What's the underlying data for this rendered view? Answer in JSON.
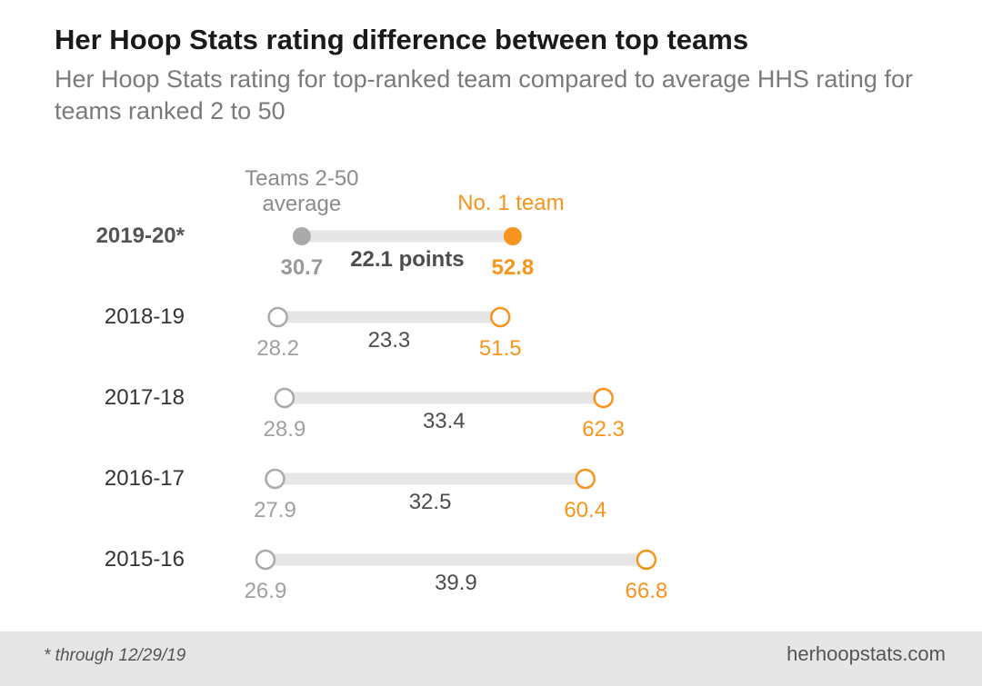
{
  "header": {
    "title": "Her Hoop Stats rating difference between top teams",
    "subtitle": "Her Hoop Stats rating for top-ranked team compared to average HHS rating for teams ranked 2 to 50"
  },
  "chart_data": {
    "type": "dumbbell",
    "title": "Her Hoop Stats rating difference between top teams",
    "subtitle": "Her Hoop Stats rating for top-ranked team compared to average HHS rating for teams ranked 2 to 50",
    "legend": {
      "left_label_line1": "Teams 2-50",
      "left_label_line2": "average",
      "right_label": "No. 1 team"
    },
    "highlight_suffix": " points",
    "series": [
      {
        "name": "Teams 2-50 average",
        "color": "#aaaaaa"
      },
      {
        "name": "No. 1 team",
        "color": "#f7941d"
      }
    ],
    "rows": [
      {
        "season": "2019-20*",
        "avg": 30.7,
        "top": 52.8,
        "diff": 22.1,
        "highlight": true
      },
      {
        "season": "2018-19",
        "avg": 28.2,
        "top": 51.5,
        "diff": 23.3,
        "highlight": false
      },
      {
        "season": "2017-18",
        "avg": 28.9,
        "top": 62.3,
        "diff": 33.4,
        "highlight": false
      },
      {
        "season": "2016-17",
        "avg": 27.9,
        "top": 60.4,
        "diff": 32.5,
        "highlight": false
      },
      {
        "season": "2015-16",
        "avg": 26.9,
        "top": 66.8,
        "diff": 39.9,
        "highlight": false
      }
    ]
  },
  "footer": {
    "note": "* through 12/29/19",
    "source": "herhoopstats.com"
  }
}
